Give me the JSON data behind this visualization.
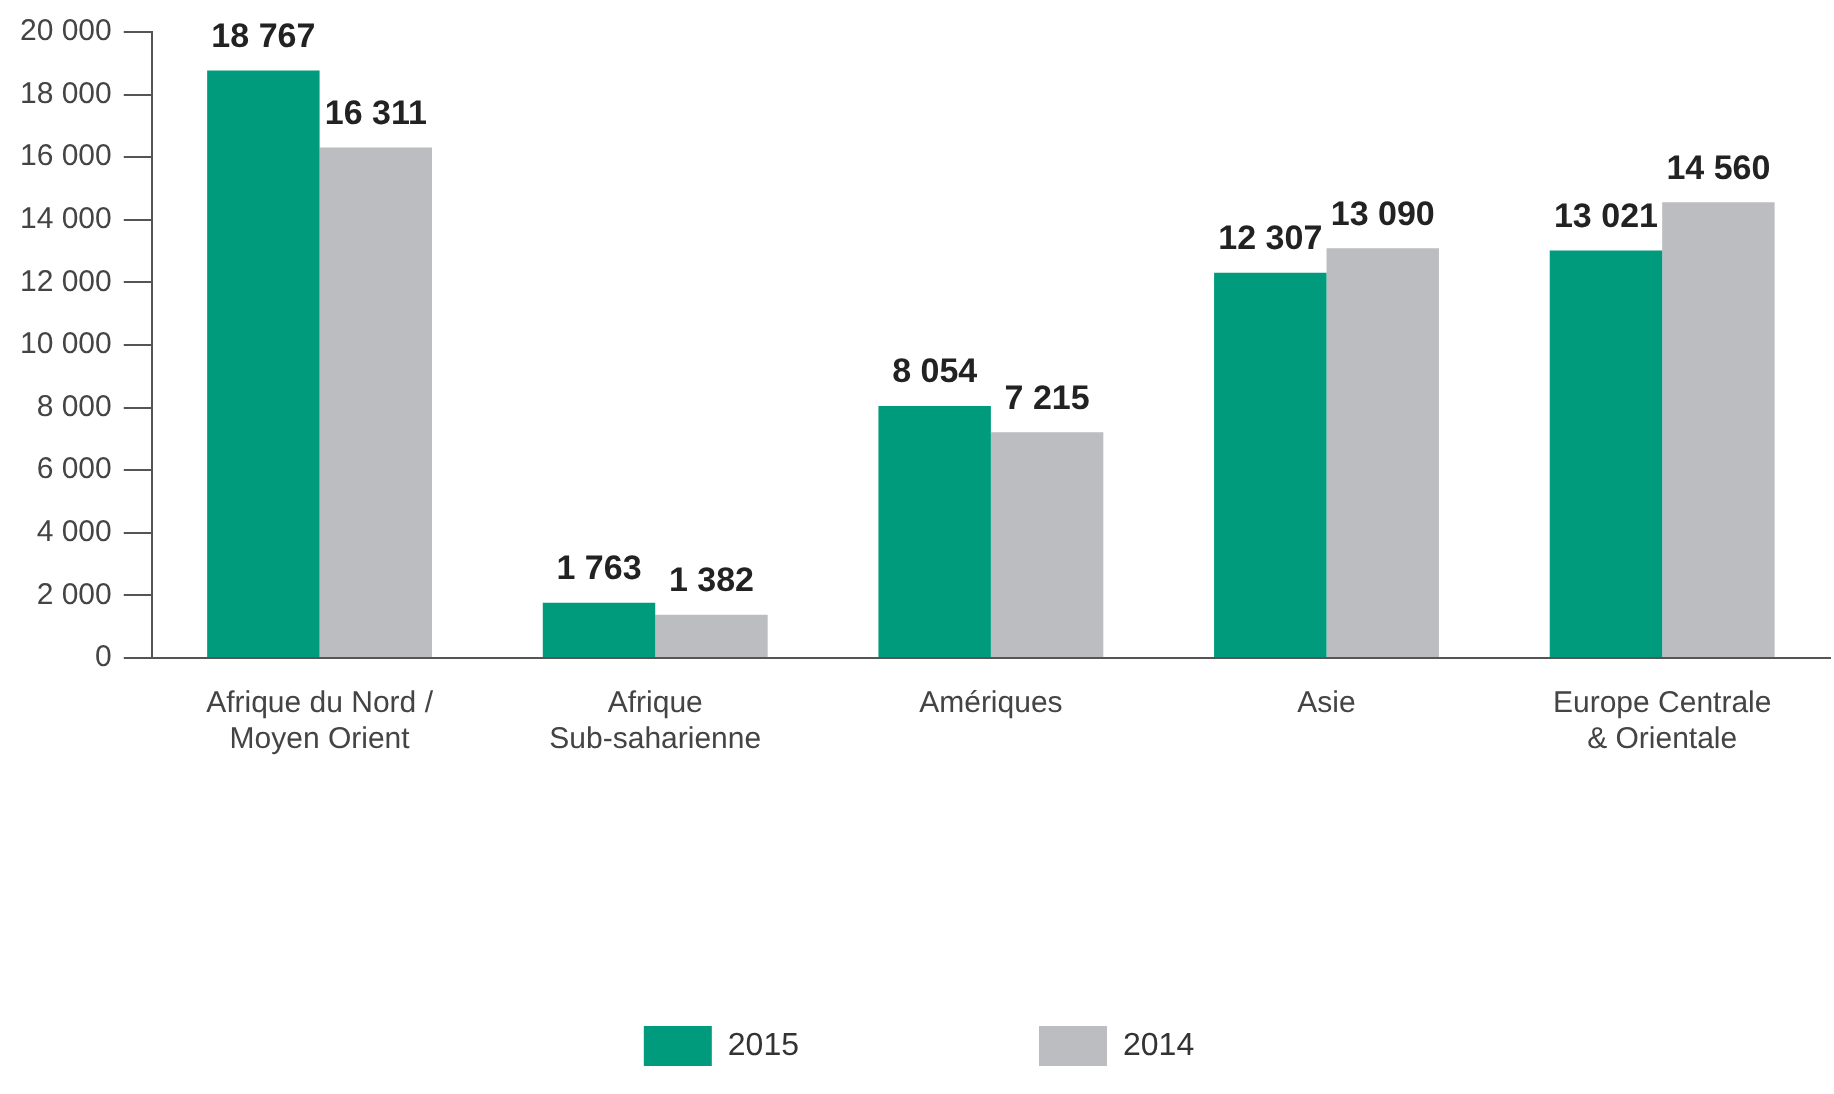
{
  "chart_data": {
    "type": "bar",
    "categories": [
      "Afrique du Nord / Moyen Orient",
      "Afrique Sub-saharienne",
      "Amériques",
      "Asie",
      "Europe Centrale & Orientale"
    ],
    "series": [
      {
        "name": "2015",
        "color": "#009b7d",
        "values": [
          18767,
          1763,
          8054,
          12307,
          13021
        ],
        "value_labels": [
          "18 767",
          "1 763",
          "8 054",
          "12 307",
          "13 021"
        ]
      },
      {
        "name": "2014",
        "color": "#bcbdc0",
        "values": [
          16311,
          1382,
          7215,
          13090,
          14560
        ],
        "value_labels": [
          "16 311",
          "1 382",
          "7 215",
          "13 090",
          "14 560"
        ]
      }
    ],
    "ylim": [
      0,
      20000
    ],
    "yticks": [
      {
        "value": 0,
        "label": "0"
      },
      {
        "value": 2000,
        "label": "2 000"
      },
      {
        "value": 4000,
        "label": "4 000"
      },
      {
        "value": 6000,
        "label": "6 000"
      },
      {
        "value": 8000,
        "label": "8 000"
      },
      {
        "value": 10000,
        "label": "10 000"
      },
      {
        "value": 12000,
        "label": "12 000"
      },
      {
        "value": 14000,
        "label": "14 000"
      },
      {
        "value": 16000,
        "label": "16 000"
      },
      {
        "value": 18000,
        "label": "18 000"
      },
      {
        "value": 20000,
        "label": "20 000"
      }
    ],
    "grid": false,
    "legend": "bottom"
  }
}
